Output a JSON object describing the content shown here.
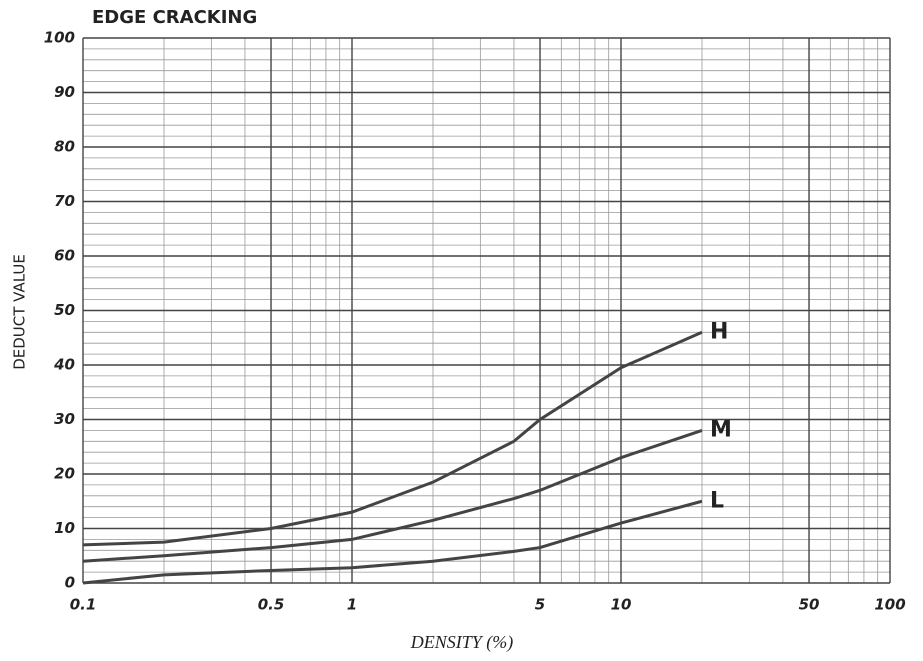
{
  "chart_data": {
    "type": "line",
    "title": "EDGE CRACKING",
    "x_label": "DENSITY (%)",
    "y_label": "DEDUCT VALUE",
    "x_scale": "log",
    "grid": true,
    "xlim": [
      0.1,
      100
    ],
    "ylim": [
      0,
      100
    ],
    "xticks": [
      0.1,
      0.5,
      1,
      5,
      10,
      50,
      100
    ],
    "yticks": [
      0,
      10,
      20,
      30,
      40,
      50,
      60,
      70,
      80,
      90,
      100
    ],
    "x_minor_ticks": [
      0.2,
      0.3,
      0.4,
      0.6,
      0.7,
      0.8,
      0.9,
      2,
      3,
      4,
      6,
      7,
      8,
      9,
      20,
      30,
      40,
      60,
      70,
      80,
      90
    ],
    "y_minor_ticks": [
      2,
      4,
      6,
      8,
      12,
      14,
      16,
      18,
      22,
      24,
      26,
      28,
      32,
      34,
      36,
      38,
      42,
      44,
      46,
      48,
      52,
      54,
      56,
      58,
      62,
      64,
      66,
      68,
      72,
      74,
      76,
      78,
      82,
      84,
      86,
      88,
      92,
      94,
      96,
      98
    ],
    "x": [
      0.1,
      0.2,
      0.5,
      1,
      2,
      4,
      5,
      10,
      20
    ],
    "series": [
      {
        "name": "H",
        "color": "#444444",
        "values": [
          7,
          7.5,
          10,
          13,
          18.5,
          26,
          30,
          39.5,
          46
        ]
      },
      {
        "name": "M",
        "color": "#444444",
        "values": [
          4,
          5,
          6.5,
          8,
          11.5,
          15.5,
          17,
          23,
          28
        ]
      },
      {
        "name": "L",
        "color": "#444444",
        "values": [
          0,
          1.5,
          2.3,
          2.8,
          4,
          5.8,
          6.5,
          11,
          15
        ]
      }
    ]
  }
}
